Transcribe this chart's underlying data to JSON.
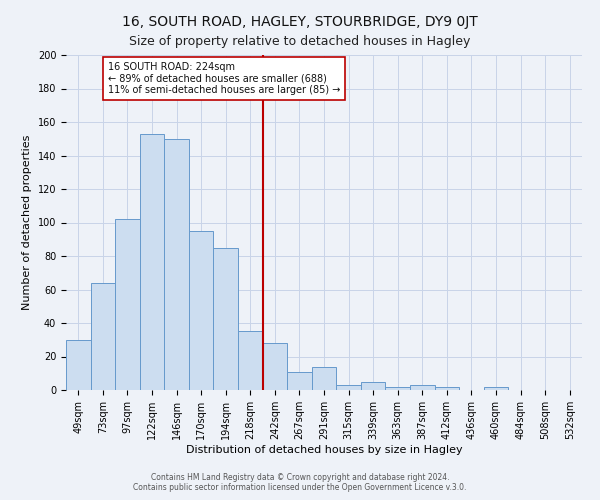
{
  "title": "16, SOUTH ROAD, HAGLEY, STOURBRIDGE, DY9 0JT",
  "subtitle": "Size of property relative to detached houses in Hagley",
  "xlabel": "Distribution of detached houses by size in Hagley",
  "ylabel": "Number of detached properties",
  "bar_labels": [
    "49sqm",
    "73sqm",
    "97sqm",
    "122sqm",
    "146sqm",
    "170sqm",
    "194sqm",
    "218sqm",
    "242sqm",
    "267sqm",
    "291sqm",
    "315sqm",
    "339sqm",
    "363sqm",
    "387sqm",
    "412sqm",
    "436sqm",
    "460sqm",
    "484sqm",
    "508sqm",
    "532sqm"
  ],
  "bar_values": [
    30,
    64,
    102,
    153,
    150,
    95,
    85,
    35,
    28,
    11,
    14,
    3,
    5,
    2,
    3,
    2,
    0,
    2,
    0,
    0,
    0
  ],
  "bar_width": 1.0,
  "bar_color": "#ccddf0",
  "bar_edge_color": "#6699cc",
  "vline_color": "#bb0000",
  "annotation_title": "16 SOUTH ROAD: 224sqm",
  "annotation_line1": "← 89% of detached houses are smaller (688)",
  "annotation_line2": "11% of semi-detached houses are larger (85) →",
  "annotation_box_facecolor": "#ffffff",
  "annotation_box_edgecolor": "#bb0000",
  "ylim": [
    0,
    200
  ],
  "yticks": [
    0,
    20,
    40,
    60,
    80,
    100,
    120,
    140,
    160,
    180,
    200
  ],
  "grid_color": "#c8d4e8",
  "footer_line1": "Contains HM Land Registry data © Crown copyright and database right 2024.",
  "footer_line2": "Contains public sector information licensed under the Open Government Licence v.3.0.",
  "bg_color": "#eef2f8",
  "title_fontsize": 10,
  "subtitle_fontsize": 9,
  "axis_label_fontsize": 8,
  "tick_fontsize": 7
}
